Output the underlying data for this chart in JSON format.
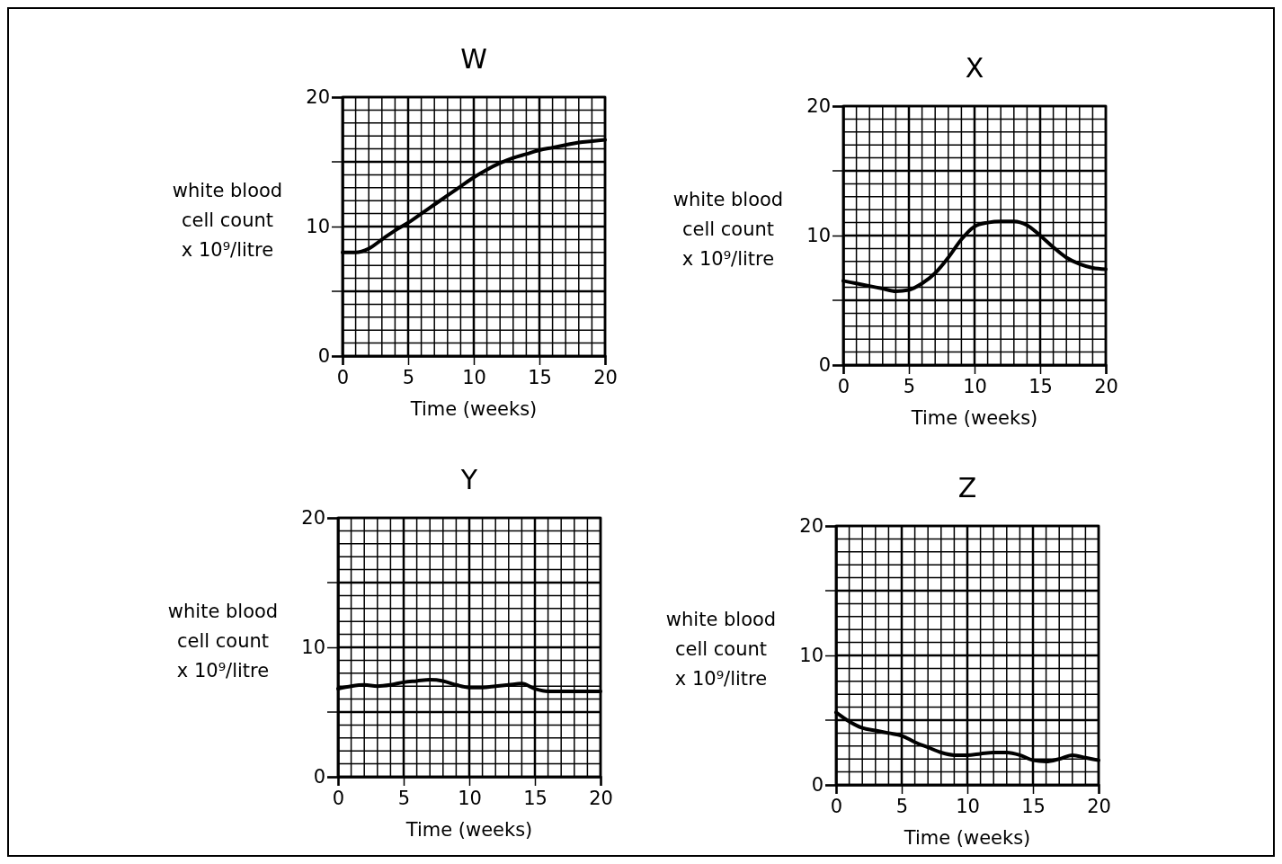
{
  "chart_data": [
    {
      "type": "line",
      "title": "W",
      "xlabel": "Time (weeks)",
      "ylabel": "white blood cell count x 10⁹/litre",
      "x": [
        0,
        1,
        2,
        3,
        4,
        5,
        6,
        7,
        8,
        9,
        10,
        11,
        12,
        13,
        14,
        15,
        16,
        17,
        18,
        19,
        20
      ],
      "xlim": [
        0,
        20
      ],
      "xticks": [
        0,
        5,
        10,
        15,
        20
      ],
      "ylim": [
        0,
        20
      ],
      "yticks": [
        0,
        10,
        20
      ],
      "grid": true,
      "series": [
        {
          "color": "#000000",
          "values": [
            8,
            8,
            8.3,
            9,
            9.7,
            10.3,
            11,
            11.7,
            12.4,
            13.1,
            13.8,
            14.4,
            14.9,
            15.3,
            15.6,
            15.9,
            16.1,
            16.3,
            16.5,
            16.6,
            16.7
          ]
        }
      ]
    },
    {
      "type": "line",
      "title": "X",
      "xlabel": "Time (weeks)",
      "ylabel": "white blood cell count x 10⁹/litre",
      "x": [
        0,
        1,
        2,
        3,
        4,
        5,
        6,
        7,
        8,
        9,
        10,
        11,
        12,
        13,
        14,
        15,
        16,
        17,
        18,
        19,
        20
      ],
      "xlim": [
        0,
        20
      ],
      "xticks": [
        0,
        5,
        10,
        15,
        20
      ],
      "ylim": [
        0,
        20
      ],
      "yticks": [
        0,
        10,
        20
      ],
      "grid": true,
      "series": [
        {
          "color": "#000000",
          "values": [
            6.5,
            6.3,
            6.1,
            5.9,
            5.7,
            5.8,
            6.3,
            7.1,
            8.3,
            9.7,
            10.7,
            11,
            11.1,
            11.1,
            10.8,
            10,
            9.1,
            8.3,
            7.8,
            7.5,
            7.4
          ]
        }
      ]
    },
    {
      "type": "line",
      "title": "Y",
      "xlabel": "Time (weeks)",
      "ylabel": "white blood cell count x 10⁹/litre",
      "x": [
        0,
        1,
        2,
        3,
        4,
        5,
        6,
        7,
        8,
        9,
        10,
        11,
        12,
        13,
        14,
        15,
        16,
        17,
        18,
        19,
        20
      ],
      "xlim": [
        0,
        20
      ],
      "xticks": [
        0,
        5,
        10,
        15,
        20
      ],
      "ylim": [
        0,
        20
      ],
      "yticks": [
        0,
        10,
        20
      ],
      "grid": true,
      "series": [
        {
          "color": "#000000",
          "values": [
            6.8,
            7,
            7.1,
            7,
            7.1,
            7.3,
            7.4,
            7.5,
            7.4,
            7.1,
            6.9,
            6.9,
            7,
            7.1,
            7.2,
            6.8,
            6.6,
            6.6,
            6.6,
            6.6,
            6.6
          ]
        }
      ]
    },
    {
      "type": "line",
      "title": "Z",
      "xlabel": "Time (weeks)",
      "ylabel": "white blood cell count x 10⁹/litre",
      "x": [
        0,
        1,
        2,
        3,
        4,
        5,
        6,
        7,
        8,
        9,
        10,
        11,
        12,
        13,
        14,
        15,
        16,
        17,
        18,
        19,
        20
      ],
      "xlim": [
        0,
        20
      ],
      "xticks": [
        0,
        5,
        10,
        15,
        20
      ],
      "ylim": [
        0,
        20
      ],
      "yticks": [
        0,
        10,
        20
      ],
      "grid": true,
      "series": [
        {
          "color": "#000000",
          "values": [
            5.6,
            4.9,
            4.4,
            4.2,
            4,
            3.8,
            3.3,
            2.9,
            2.5,
            2.3,
            2.3,
            2.4,
            2.5,
            2.5,
            2.3,
            1.9,
            1.8,
            2,
            2.3,
            2.1,
            1.9
          ]
        }
      ]
    }
  ]
}
